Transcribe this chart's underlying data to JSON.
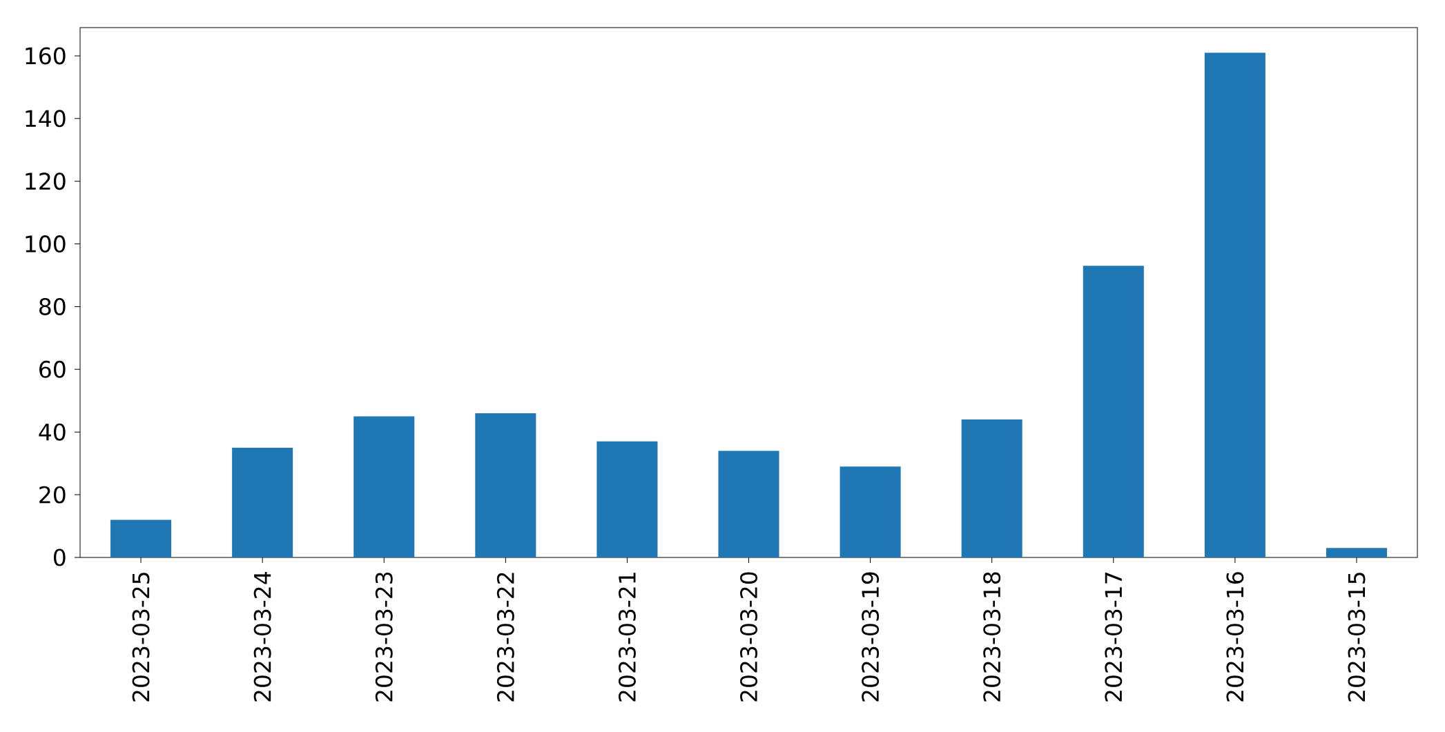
{
  "chart_data": {
    "type": "bar",
    "categories": [
      "2023-03-25",
      "2023-03-24",
      "2023-03-23",
      "2023-03-22",
      "2023-03-21",
      "2023-03-20",
      "2023-03-19",
      "2023-03-18",
      "2023-03-17",
      "2023-03-16",
      "2023-03-15"
    ],
    "values": [
      12,
      35,
      45,
      46,
      37,
      34,
      29,
      44,
      93,
      161,
      3
    ],
    "color": "#1f77b4",
    "ylim": [
      0,
      169
    ],
    "yticks": [
      0,
      20,
      40,
      60,
      80,
      100,
      120,
      140,
      160
    ],
    "grid": false
  }
}
